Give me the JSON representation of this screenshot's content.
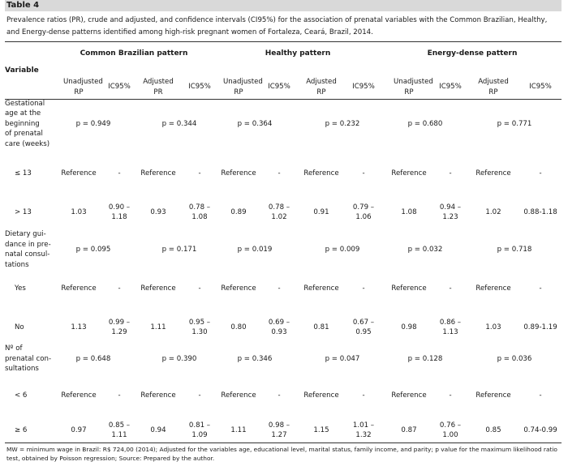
{
  "title": "Table 4",
  "caption": "Prevalence ratios (PR), crude and adjusted, and confidence intervals (CI95%) for the association of prenatal variables with the Common Brazilian, Healthy, and Energy-dense patterns identified among high-risk pregnant women of Fortaleza, Ceará, Brazil, 2014.",
  "header": {
    "variable": "Variable",
    "groups": [
      "Common Brazilian pattern",
      "Healthy pattern",
      "Energy-dense pattern"
    ],
    "sub": [
      [
        "Unadjusted",
        "RP"
      ],
      [
        "IC95%"
      ],
      [
        "Adjusted",
        "PR"
      ],
      [
        "IC95%"
      ],
      [
        "Unadjusted",
        "RP"
      ],
      [
        "IC95%"
      ],
      [
        "Adjusted",
        "RP"
      ],
      [
        "IC95%"
      ],
      [
        "Unadjusted",
        "RP"
      ],
      [
        "IC95%"
      ],
      [
        "Adjusted",
        "RP"
      ],
      [
        "IC95%"
      ]
    ]
  },
  "rows": [
    {
      "label": [
        "Gestational",
        "age at the",
        "beginning",
        "of prenatal",
        "care (weeks)"
      ],
      "p": [
        "p = 0.949",
        "p = 0.344",
        "p = 0.364",
        "p = 0.232",
        "p = 0.680",
        "p = 0.771"
      ]
    },
    {
      "label": [
        "≤ 13"
      ],
      "cells": [
        [
          "Reference"
        ],
        [
          "-"
        ],
        [
          "Reference"
        ],
        [
          "-"
        ],
        [
          "Reference"
        ],
        [
          "-"
        ],
        [
          "Reference"
        ],
        [
          "-"
        ],
        [
          "Reference"
        ],
        [
          "-"
        ],
        [
          "Reference"
        ],
        [
          "-"
        ]
      ]
    },
    {
      "label": [
        "> 13"
      ],
      "cells": [
        [
          "1.03"
        ],
        [
          "0.90 –",
          "1.18"
        ],
        [
          "0.93"
        ],
        [
          "0.78 –",
          "1.08"
        ],
        [
          "0.89"
        ],
        [
          "0.78 –",
          "1.02"
        ],
        [
          "0.91"
        ],
        [
          "0.79 –",
          "1.06"
        ],
        [
          "1.08"
        ],
        [
          "0.94 –",
          "1.23"
        ],
        [
          "1.02"
        ],
        [
          "0.88-1.18"
        ]
      ]
    },
    {
      "label": [
        "Dietary gui-",
        "dance in pre-",
        "natal consul-",
        "tations"
      ],
      "p": [
        "p = 0.095",
        "p = 0.171",
        "p = 0.019",
        "p = 0.009",
        "p = 0.032",
        "p = 0.718"
      ]
    },
    {
      "label": [
        "Yes"
      ],
      "cells": [
        [
          "Reference"
        ],
        [
          "-"
        ],
        [
          "Reference"
        ],
        [
          "-"
        ],
        [
          "Reference"
        ],
        [
          "-"
        ],
        [
          "Reference"
        ],
        [
          "-"
        ],
        [
          "Reference"
        ],
        [
          "-"
        ],
        [
          "Reference"
        ],
        [
          "-"
        ]
      ]
    },
    {
      "label": [
        "No"
      ],
      "cells": [
        [
          "1.13"
        ],
        [
          "0.99 –",
          "1.29"
        ],
        [
          "1.11"
        ],
        [
          "0.95 –",
          "1.30"
        ],
        [
          "0.80"
        ],
        [
          "0.69 –",
          "0.93"
        ],
        [
          "0.81"
        ],
        [
          "0.67 –",
          "0.95"
        ],
        [
          "0.98"
        ],
        [
          "0.86 –",
          "1.13"
        ],
        [
          "1.03"
        ],
        [
          "0.89-1.19"
        ]
      ]
    },
    {
      "label": [
        "Nº of",
        "prenatal con-",
        "sultations"
      ],
      "p": [
        "p = 0.648",
        "p = 0.390",
        "p = 0.346",
        "p = 0.047",
        "p = 0.128",
        "p = 0.036"
      ]
    },
    {
      "label": [
        "< 6"
      ],
      "cells": [
        [
          "Reference"
        ],
        [
          "-"
        ],
        [
          "Reference"
        ],
        [
          "-"
        ],
        [
          "Reference"
        ],
        [
          "-"
        ],
        [
          "Reference"
        ],
        [
          "-"
        ],
        [
          "Reference"
        ],
        [
          "-"
        ],
        [
          "Reference"
        ],
        [
          "-"
        ]
      ]
    },
    {
      "label": [
        "≥ 6"
      ],
      "cells": [
        [
          "0.97"
        ],
        [
          "0.85 –",
          "1.11"
        ],
        [
          "0.94"
        ],
        [
          "0.81 –",
          "1.09"
        ],
        [
          "1.11"
        ],
        [
          "0.98 –",
          "1.27"
        ],
        [
          "1.15"
        ],
        [
          "1.01 –",
          "1.32"
        ],
        [
          "0.87"
        ],
        [
          "0.76 –",
          "1.00"
        ],
        [
          "0.85"
        ],
        [
          "0.74-0.99"
        ]
      ]
    }
  ],
  "footer": "MW = minimum wage in Brazil: R$ 724,00 (2014); Adjusted for the variables age, educational level, marital status, family income, and parity; p value for the maximum likelihood ratio test, obtained by Poisson regression; Source: Prepared by the author."
}
